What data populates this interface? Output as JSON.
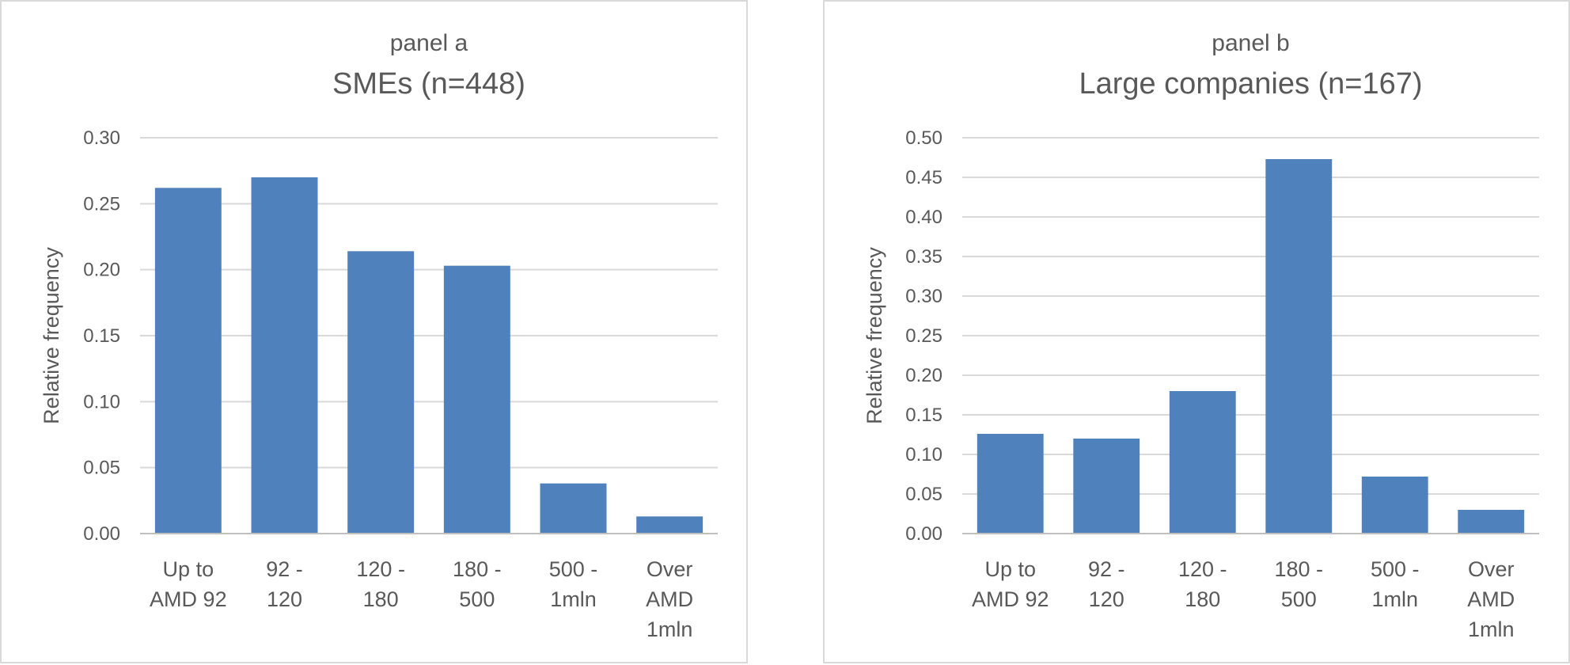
{
  "chart_data": [
    {
      "type": "bar",
      "subtitle": "panel a",
      "title": "SMEs (n=448)",
      "ylabel": "Relative frequency",
      "xlabel": "",
      "ylim": [
        0,
        0.3
      ],
      "yticks": [
        "0.00",
        "0.05",
        "0.10",
        "0.15",
        "0.20",
        "0.25",
        "0.30"
      ],
      "categories": [
        [
          "Up to",
          "AMD 92"
        ],
        [
          "92 -",
          "120"
        ],
        [
          "120 -",
          "180"
        ],
        [
          "180 -",
          "500"
        ],
        [
          "500 -",
          "1mln"
        ],
        [
          "Over",
          "AMD",
          "1mln"
        ]
      ],
      "values": [
        0.262,
        0.27,
        0.214,
        0.203,
        0.038,
        0.013
      ],
      "color": "#4f81bd",
      "grid": true
    },
    {
      "type": "bar",
      "subtitle": "panel b",
      "title": "Large companies (n=167)",
      "ylabel": "Relative frequency",
      "xlabel": "",
      "ylim": [
        0,
        0.5
      ],
      "yticks": [
        "0.00",
        "0.05",
        "0.10",
        "0.15",
        "0.20",
        "0.25",
        "0.30",
        "0.35",
        "0.40",
        "0.45",
        "0.50"
      ],
      "categories": [
        [
          "Up to",
          "AMD 92"
        ],
        [
          "92 -",
          "120"
        ],
        [
          "120 -",
          "180"
        ],
        [
          "180 -",
          "500"
        ],
        [
          "500 -",
          "1mln"
        ],
        [
          "Over",
          "AMD",
          "1mln"
        ]
      ],
      "values": [
        0.126,
        0.12,
        0.18,
        0.473,
        0.072,
        0.03
      ],
      "color": "#4f81bd",
      "grid": true
    }
  ]
}
